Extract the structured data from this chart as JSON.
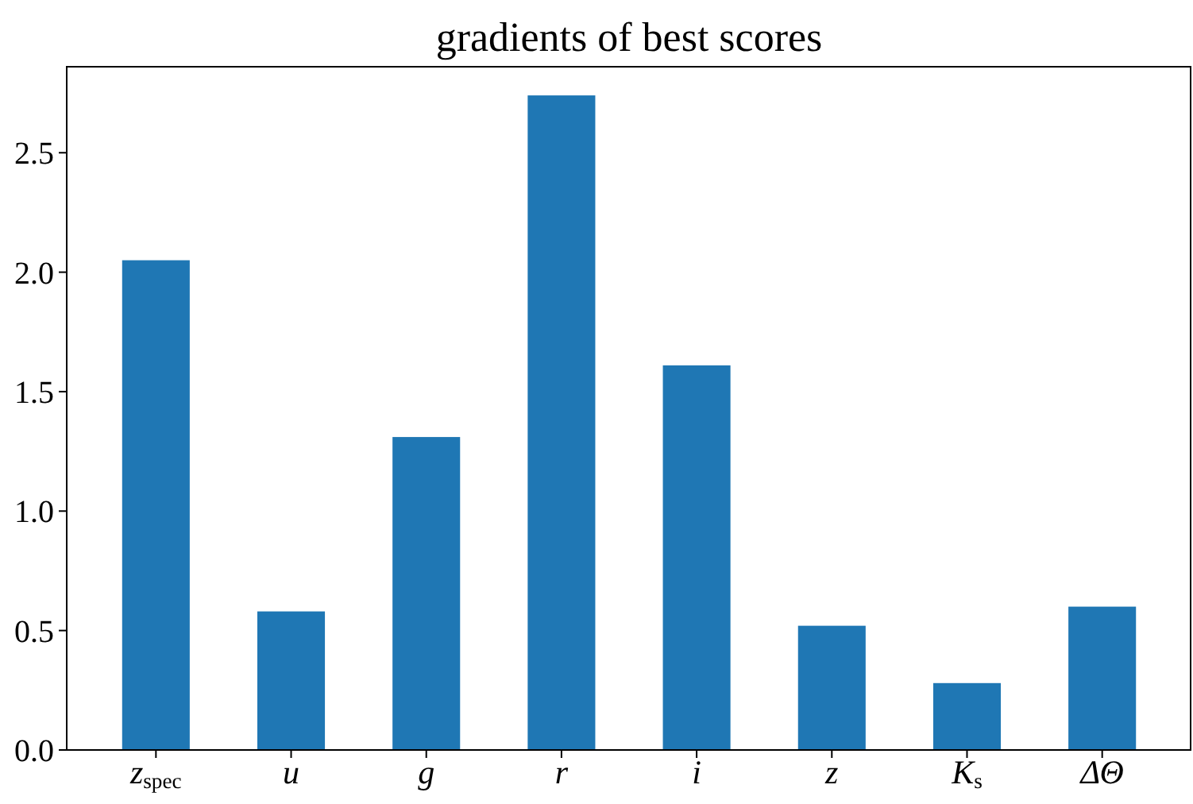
{
  "chart_data": {
    "type": "bar",
    "title": "gradients of best scores",
    "categories": [
      "z$_{spec}$",
      "u",
      "g",
      "r",
      "i",
      "z",
      "K$_{s}$",
      "ΔΘ"
    ],
    "values": [
      2.05,
      0.58,
      1.31,
      2.74,
      1.61,
      0.52,
      0.28,
      0.6
    ],
    "color": "#1f77b4",
    "ylim": [
      0,
      2.86
    ],
    "yticks": [
      {
        "value": 0,
        "label": "0.0"
      },
      {
        "value": 0.5,
        "label": "0.5"
      },
      {
        "value": 1,
        "label": "1.0"
      },
      {
        "value": 1.5,
        "label": "1.5"
      },
      {
        "value": 2,
        "label": "2.0"
      },
      {
        "value": 2.5,
        "label": "2.5"
      }
    ],
    "grid": false
  }
}
